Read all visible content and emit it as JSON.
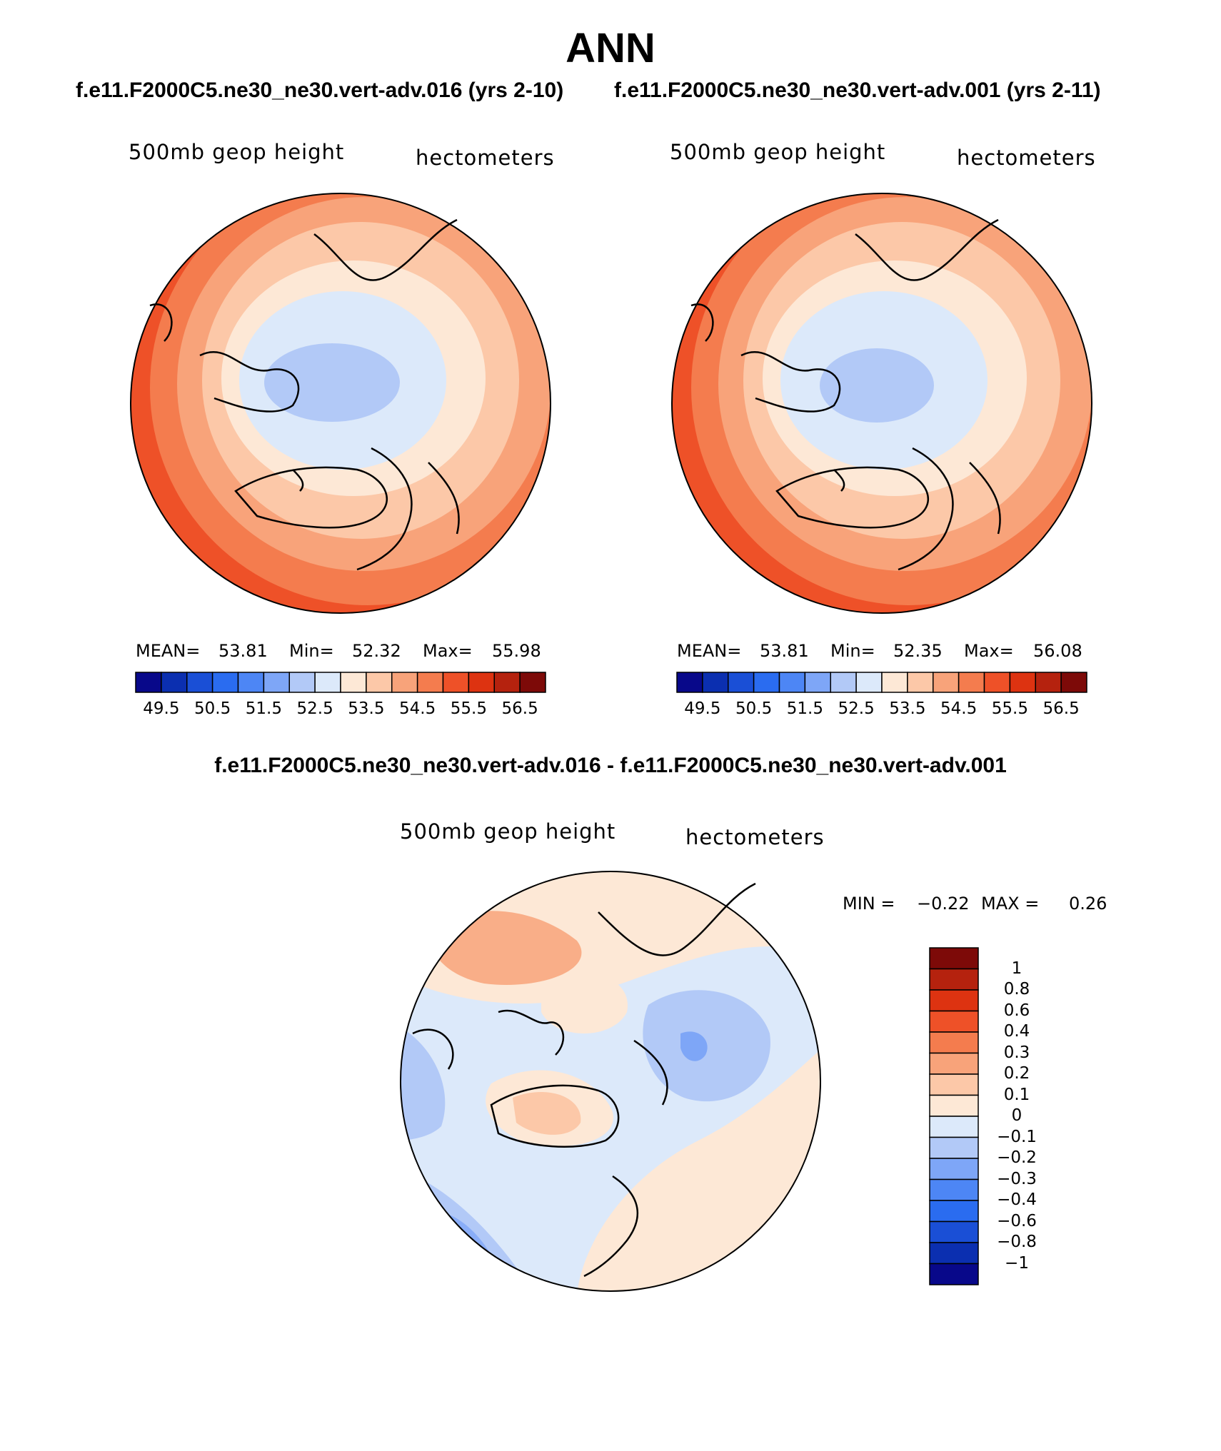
{
  "figure": {
    "title": "ANN",
    "left_case": "f.e11.F2000C5.ne30_ne30.vert-adv.016 (yrs 2-10)",
    "right_case": "f.e11.F2000C5.ne30_ne30.vert-adv.001 (yrs 2-11)",
    "diff_title": "f.e11.F2000C5.ne30_ne30.vert-adv.016 - f.e11.F2000C5.ne30_ne30.vert-adv.001"
  },
  "panels": {
    "left": {
      "variable": "500mb geop height",
      "units": "hectometers",
      "mean_label": "MEAN=",
      "mean": "53.81",
      "min_label": "Min=",
      "min": "52.32",
      "max_label": "Max=",
      "max": "55.98"
    },
    "right": {
      "variable": "500mb geop height",
      "units": "hectometers",
      "mean_label": "MEAN=",
      "mean": "53.81",
      "min_label": "Min=",
      "min": "52.35",
      "max_label": "Max=",
      "max": "56.08"
    },
    "diff": {
      "variable": "500mb geop height",
      "units": "hectometers",
      "min_label": "MIN =",
      "min": "−0.22",
      "max_label": "MAX =",
      "max": "0.26"
    }
  },
  "colorbars": {
    "abs_ticks": [
      "49.5",
      "50.5",
      "51.5",
      "52.5",
      "53.5",
      "54.5",
      "55.5",
      "56.5"
    ],
    "abs_colors": [
      "#08088a",
      "#0b2fb0",
      "#1a4fd6",
      "#2a6cf0",
      "#4d86f5",
      "#7ea6f7",
      "#b2c9f7",
      "#dce9fa",
      "#fde8d6",
      "#fcc8a8",
      "#f8a37a",
      "#f47c4e",
      "#ee5128",
      "#dd3311",
      "#b5220e",
      "#7d0a08"
    ],
    "diff_ticks": [
      "1",
      "0.8",
      "0.6",
      "0.4",
      "0.3",
      "0.2",
      "0.1",
      "0",
      "−0.1",
      "−0.2",
      "−0.3",
      "−0.4",
      "−0.6",
      "−0.8",
      "−1"
    ],
    "diff_colors": [
      "#7d0a08",
      "#b5220e",
      "#dd3311",
      "#ee5128",
      "#f47c4e",
      "#f8a37a",
      "#fcc8a8",
      "#fde8d6",
      "#dce9fa",
      "#b2c9f7",
      "#7ea6f7",
      "#4d86f5",
      "#2a6cf0",
      "#1a4fd6",
      "#0b2fb0",
      "#08088a"
    ]
  }
}
